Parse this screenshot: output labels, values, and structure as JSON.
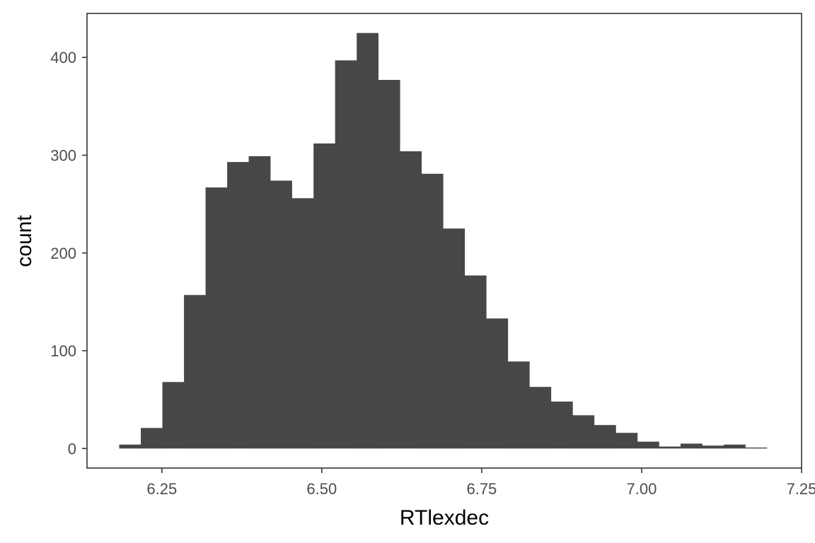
{
  "chart_data": {
    "type": "bar",
    "subtype": "histogram",
    "xlabel": "RTlexdec",
    "ylabel": "count",
    "xlim": [
      6.133,
      7.25
    ],
    "ylim": [
      -20,
      445
    ],
    "x_ticks": [
      6.25,
      6.5,
      6.75,
      7.0,
      7.25
    ],
    "x_tick_labels": [
      "6.25",
      "6.50",
      "6.75",
      "7.00",
      "7.25"
    ],
    "y_ticks": [
      0,
      100,
      200,
      300,
      400
    ],
    "y_tick_labels": [
      "0",
      "100",
      "200",
      "300",
      "400"
    ],
    "grid": false,
    "legend": "none",
    "bar_color": "#474747",
    "bins": [
      {
        "start": 6.1833,
        "end": 6.2171,
        "count": 4
      },
      {
        "start": 6.2171,
        "end": 6.2508,
        "count": 21
      },
      {
        "start": 6.2508,
        "end": 6.2846,
        "count": 68
      },
      {
        "start": 6.2846,
        "end": 6.3183,
        "count": 157
      },
      {
        "start": 6.3183,
        "end": 6.3521,
        "count": 267
      },
      {
        "start": 6.3521,
        "end": 6.3858,
        "count": 293
      },
      {
        "start": 6.3858,
        "end": 6.4196,
        "count": 299
      },
      {
        "start": 6.4196,
        "end": 6.4533,
        "count": 274
      },
      {
        "start": 6.4533,
        "end": 6.4871,
        "count": 256
      },
      {
        "start": 6.4871,
        "end": 6.5208,
        "count": 312
      },
      {
        "start": 6.5208,
        "end": 6.5546,
        "count": 397
      },
      {
        "start": 6.5546,
        "end": 6.5883,
        "count": 425
      },
      {
        "start": 6.5883,
        "end": 6.6221,
        "count": 377
      },
      {
        "start": 6.6221,
        "end": 6.6558,
        "count": 304
      },
      {
        "start": 6.6558,
        "end": 6.6896,
        "count": 281
      },
      {
        "start": 6.6896,
        "end": 6.7233,
        "count": 225
      },
      {
        "start": 6.7233,
        "end": 6.7571,
        "count": 177
      },
      {
        "start": 6.7571,
        "end": 6.7908,
        "count": 133
      },
      {
        "start": 6.7908,
        "end": 6.8246,
        "count": 89
      },
      {
        "start": 6.8246,
        "end": 6.8583,
        "count": 63
      },
      {
        "start": 6.8583,
        "end": 6.8921,
        "count": 48
      },
      {
        "start": 6.8921,
        "end": 6.9258,
        "count": 34
      },
      {
        "start": 6.9258,
        "end": 6.9596,
        "count": 24
      },
      {
        "start": 6.9596,
        "end": 6.9933,
        "count": 16
      },
      {
        "start": 6.9933,
        "end": 7.0271,
        "count": 7
      },
      {
        "start": 7.0271,
        "end": 7.0608,
        "count": 2
      },
      {
        "start": 7.0608,
        "end": 7.0946,
        "count": 5
      },
      {
        "start": 7.0946,
        "end": 7.1283,
        "count": 3
      },
      {
        "start": 7.1283,
        "end": 7.1621,
        "count": 4
      },
      {
        "start": 7.1621,
        "end": 7.1958,
        "count": 1
      }
    ]
  }
}
